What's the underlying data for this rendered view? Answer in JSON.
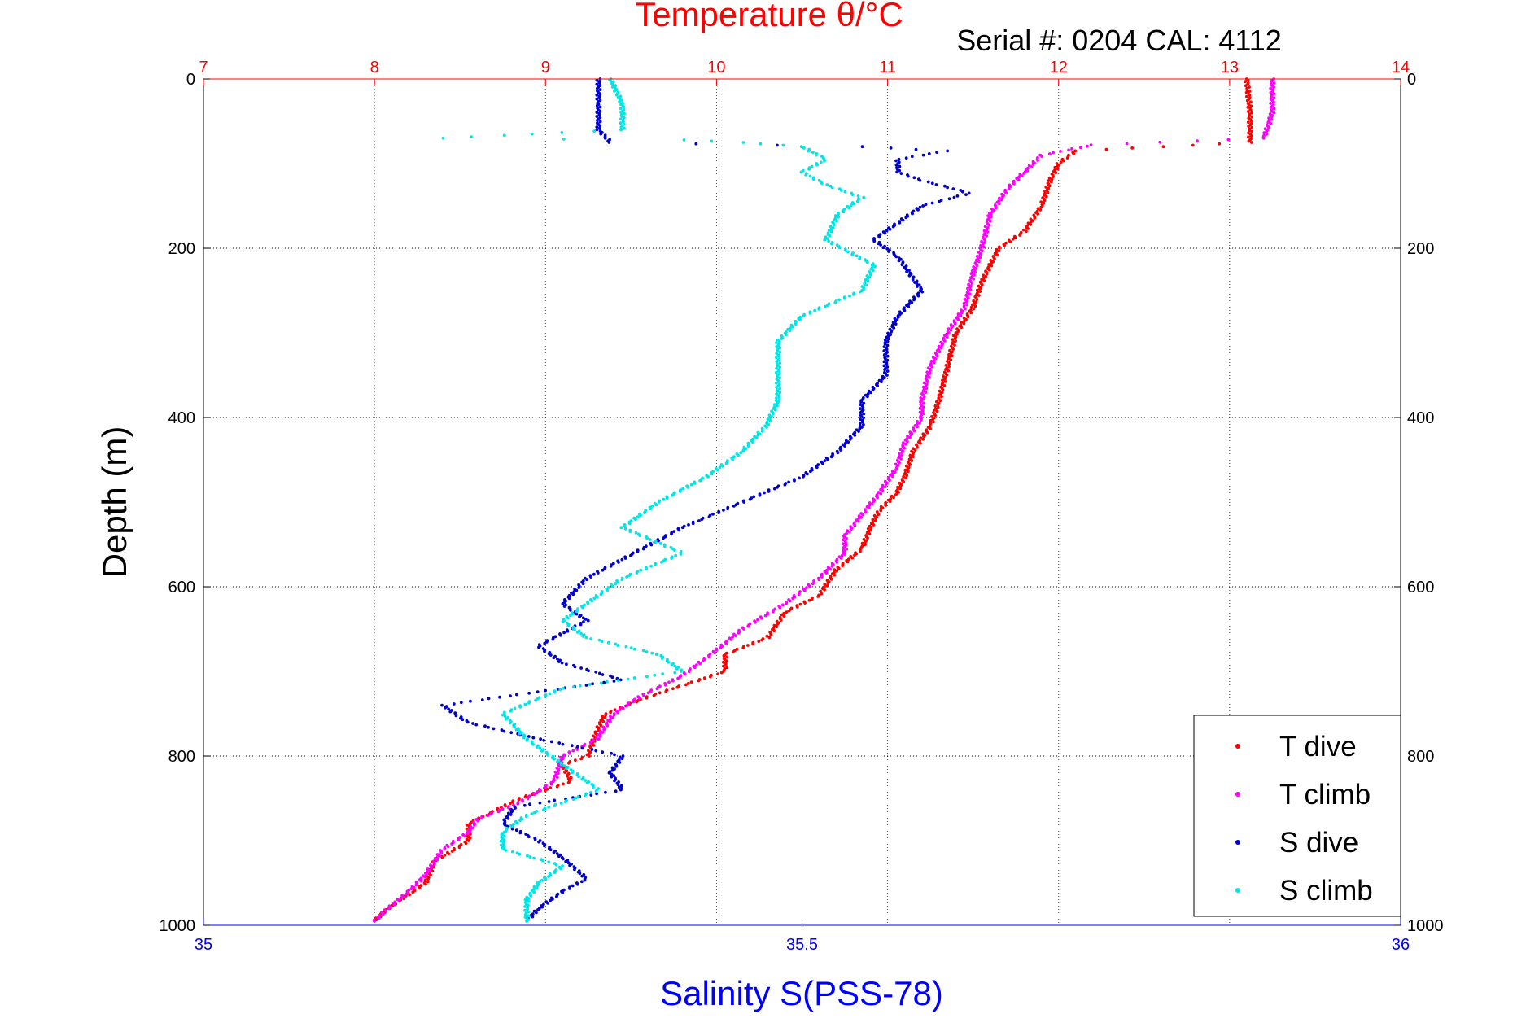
{
  "chart_data": {
    "type": "scatter",
    "title": "Temperature θ/°C",
    "subtitle": "Serial #: 0204  CAL: 4112",
    "ylabel": "Depth (m)",
    "xlabel": "Salinity S(PSS-78)",
    "y_axis": {
      "range": [
        0,
        1000
      ],
      "reversed": true,
      "ticks": [
        "0",
        "200",
        "400",
        "600",
        "800",
        "1000"
      ]
    },
    "x_axis_top": {
      "range": [
        7,
        14
      ],
      "ticks": [
        "7",
        "8",
        "9",
        "10",
        "11",
        "12",
        "13",
        "14"
      ],
      "color": "#ff0000"
    },
    "x_axis_bottom": {
      "range": [
        35,
        36
      ],
      "ticks": [
        "35",
        "35.5",
        "36"
      ],
      "color": "#0000ff"
    },
    "grid": true,
    "legend_position": "bottom-right",
    "series": [
      {
        "name": "T dive",
        "axis": "temperature",
        "color": "#ff0000",
        "points": [
          [
            13.1,
            0
          ],
          [
            13.12,
            40
          ],
          [
            13.12,
            75
          ],
          [
            12.1,
            85
          ],
          [
            12.0,
            100
          ],
          [
            11.95,
            120
          ],
          [
            11.9,
            150
          ],
          [
            11.8,
            180
          ],
          [
            11.65,
            200
          ],
          [
            11.55,
            240
          ],
          [
            11.5,
            270
          ],
          [
            11.4,
            300
          ],
          [
            11.35,
            340
          ],
          [
            11.3,
            380
          ],
          [
            11.25,
            410
          ],
          [
            11.15,
            440
          ],
          [
            11.1,
            470
          ],
          [
            11.05,
            490
          ],
          [
            10.95,
            510
          ],
          [
            10.9,
            530
          ],
          [
            10.85,
            555
          ],
          [
            10.7,
            580
          ],
          [
            10.6,
            610
          ],
          [
            10.4,
            630
          ],
          [
            10.3,
            660
          ],
          [
            10.05,
            680
          ],
          [
            10.05,
            700
          ],
          [
            9.6,
            730
          ],
          [
            9.35,
            750
          ],
          [
            9.3,
            770
          ],
          [
            9.25,
            800
          ],
          [
            9.1,
            810
          ],
          [
            9.15,
            830
          ],
          [
            8.85,
            850
          ],
          [
            8.65,
            870
          ],
          [
            8.55,
            880
          ],
          [
            8.55,
            900
          ],
          [
            8.35,
            925
          ],
          [
            8.3,
            950
          ],
          [
            8.15,
            970
          ],
          [
            8.05,
            985
          ],
          [
            8.0,
            995
          ]
        ]
      },
      {
        "name": "T climb",
        "axis": "temperature",
        "color": "#ff00ff",
        "points": [
          [
            13.25,
            0
          ],
          [
            13.25,
            40
          ],
          [
            13.2,
            70
          ],
          [
            12.2,
            78
          ],
          [
            11.9,
            90
          ],
          [
            11.8,
            110
          ],
          [
            11.7,
            130
          ],
          [
            11.6,
            160
          ],
          [
            11.55,
            200
          ],
          [
            11.5,
            230
          ],
          [
            11.45,
            270
          ],
          [
            11.35,
            300
          ],
          [
            11.25,
            340
          ],
          [
            11.2,
            380
          ],
          [
            11.2,
            400
          ],
          [
            11.1,
            430
          ],
          [
            11.05,
            460
          ],
          [
            10.95,
            490
          ],
          [
            10.85,
            515
          ],
          [
            10.75,
            540
          ],
          [
            10.75,
            560
          ],
          [
            10.6,
            590
          ],
          [
            10.4,
            620
          ],
          [
            10.15,
            650
          ],
          [
            10.0,
            675
          ],
          [
            9.8,
            705
          ],
          [
            9.55,
            730
          ],
          [
            9.4,
            750
          ],
          [
            9.3,
            780
          ],
          [
            9.1,
            800
          ],
          [
            9.05,
            830
          ],
          [
            8.85,
            855
          ],
          [
            8.6,
            875
          ],
          [
            8.55,
            890
          ],
          [
            8.4,
            910
          ],
          [
            8.3,
            940
          ],
          [
            8.2,
            960
          ],
          [
            8.05,
            985
          ],
          [
            8.0,
            995
          ]
        ]
      },
      {
        "name": "S dive",
        "axis": "salinity",
        "color": "#0000cc",
        "points": [
          [
            35.33,
            0
          ],
          [
            35.33,
            30
          ],
          [
            35.33,
            60
          ],
          [
            35.34,
            75
          ],
          [
            35.55,
            80
          ],
          [
            35.62,
            85
          ],
          [
            35.58,
            95
          ],
          [
            35.58,
            110
          ],
          [
            35.6,
            120
          ],
          [
            35.64,
            135
          ],
          [
            35.6,
            150
          ],
          [
            35.58,
            170
          ],
          [
            35.56,
            190
          ],
          [
            35.58,
            210
          ],
          [
            35.6,
            250
          ],
          [
            35.58,
            280
          ],
          [
            35.57,
            310
          ],
          [
            35.57,
            350
          ],
          [
            35.55,
            380
          ],
          [
            35.55,
            410
          ],
          [
            35.53,
            440
          ],
          [
            35.5,
            470
          ],
          [
            35.45,
            500
          ],
          [
            35.4,
            530
          ],
          [
            35.36,
            560
          ],
          [
            35.32,
            590
          ],
          [
            35.3,
            620
          ],
          [
            35.32,
            640
          ],
          [
            35.28,
            670
          ],
          [
            35.3,
            690
          ],
          [
            35.35,
            710
          ],
          [
            35.2,
            740
          ],
          [
            35.22,
            760
          ],
          [
            35.28,
            780
          ],
          [
            35.35,
            800
          ],
          [
            35.34,
            820
          ],
          [
            35.35,
            840
          ],
          [
            35.26,
            860
          ],
          [
            35.25,
            880
          ],
          [
            35.28,
            900
          ],
          [
            35.3,
            920
          ],
          [
            35.32,
            945
          ],
          [
            35.3,
            960
          ],
          [
            35.28,
            980
          ],
          [
            35.27,
            995
          ]
        ]
      },
      {
        "name": "S climb",
        "axis": "salinity",
        "color": "#00e5e5",
        "points": [
          [
            35.34,
            0
          ],
          [
            35.35,
            30
          ],
          [
            35.35,
            60
          ],
          [
            35.2,
            70
          ],
          [
            35.4,
            72
          ],
          [
            35.45,
            75
          ],
          [
            35.5,
            80
          ],
          [
            35.52,
            95
          ],
          [
            35.5,
            110
          ],
          [
            35.52,
            125
          ],
          [
            35.55,
            140
          ],
          [
            35.53,
            160
          ],
          [
            35.52,
            190
          ],
          [
            35.56,
            220
          ],
          [
            35.55,
            250
          ],
          [
            35.5,
            280
          ],
          [
            35.48,
            310
          ],
          [
            35.48,
            350
          ],
          [
            35.48,
            380
          ],
          [
            35.47,
            410
          ],
          [
            35.45,
            440
          ],
          [
            35.42,
            470
          ],
          [
            35.38,
            500
          ],
          [
            35.35,
            530
          ],
          [
            35.4,
            560
          ],
          [
            35.35,
            590
          ],
          [
            35.32,
            620
          ],
          [
            35.3,
            640
          ],
          [
            35.32,
            660
          ],
          [
            35.38,
            680
          ],
          [
            35.4,
            700
          ],
          [
            35.3,
            720
          ],
          [
            35.25,
            750
          ],
          [
            35.27,
            780
          ],
          [
            35.3,
            810
          ],
          [
            35.33,
            840
          ],
          [
            35.27,
            870
          ],
          [
            35.25,
            890
          ],
          [
            35.25,
            910
          ],
          [
            35.3,
            930
          ],
          [
            35.28,
            950
          ],
          [
            35.27,
            970
          ],
          [
            35.27,
            995
          ]
        ]
      }
    ]
  }
}
